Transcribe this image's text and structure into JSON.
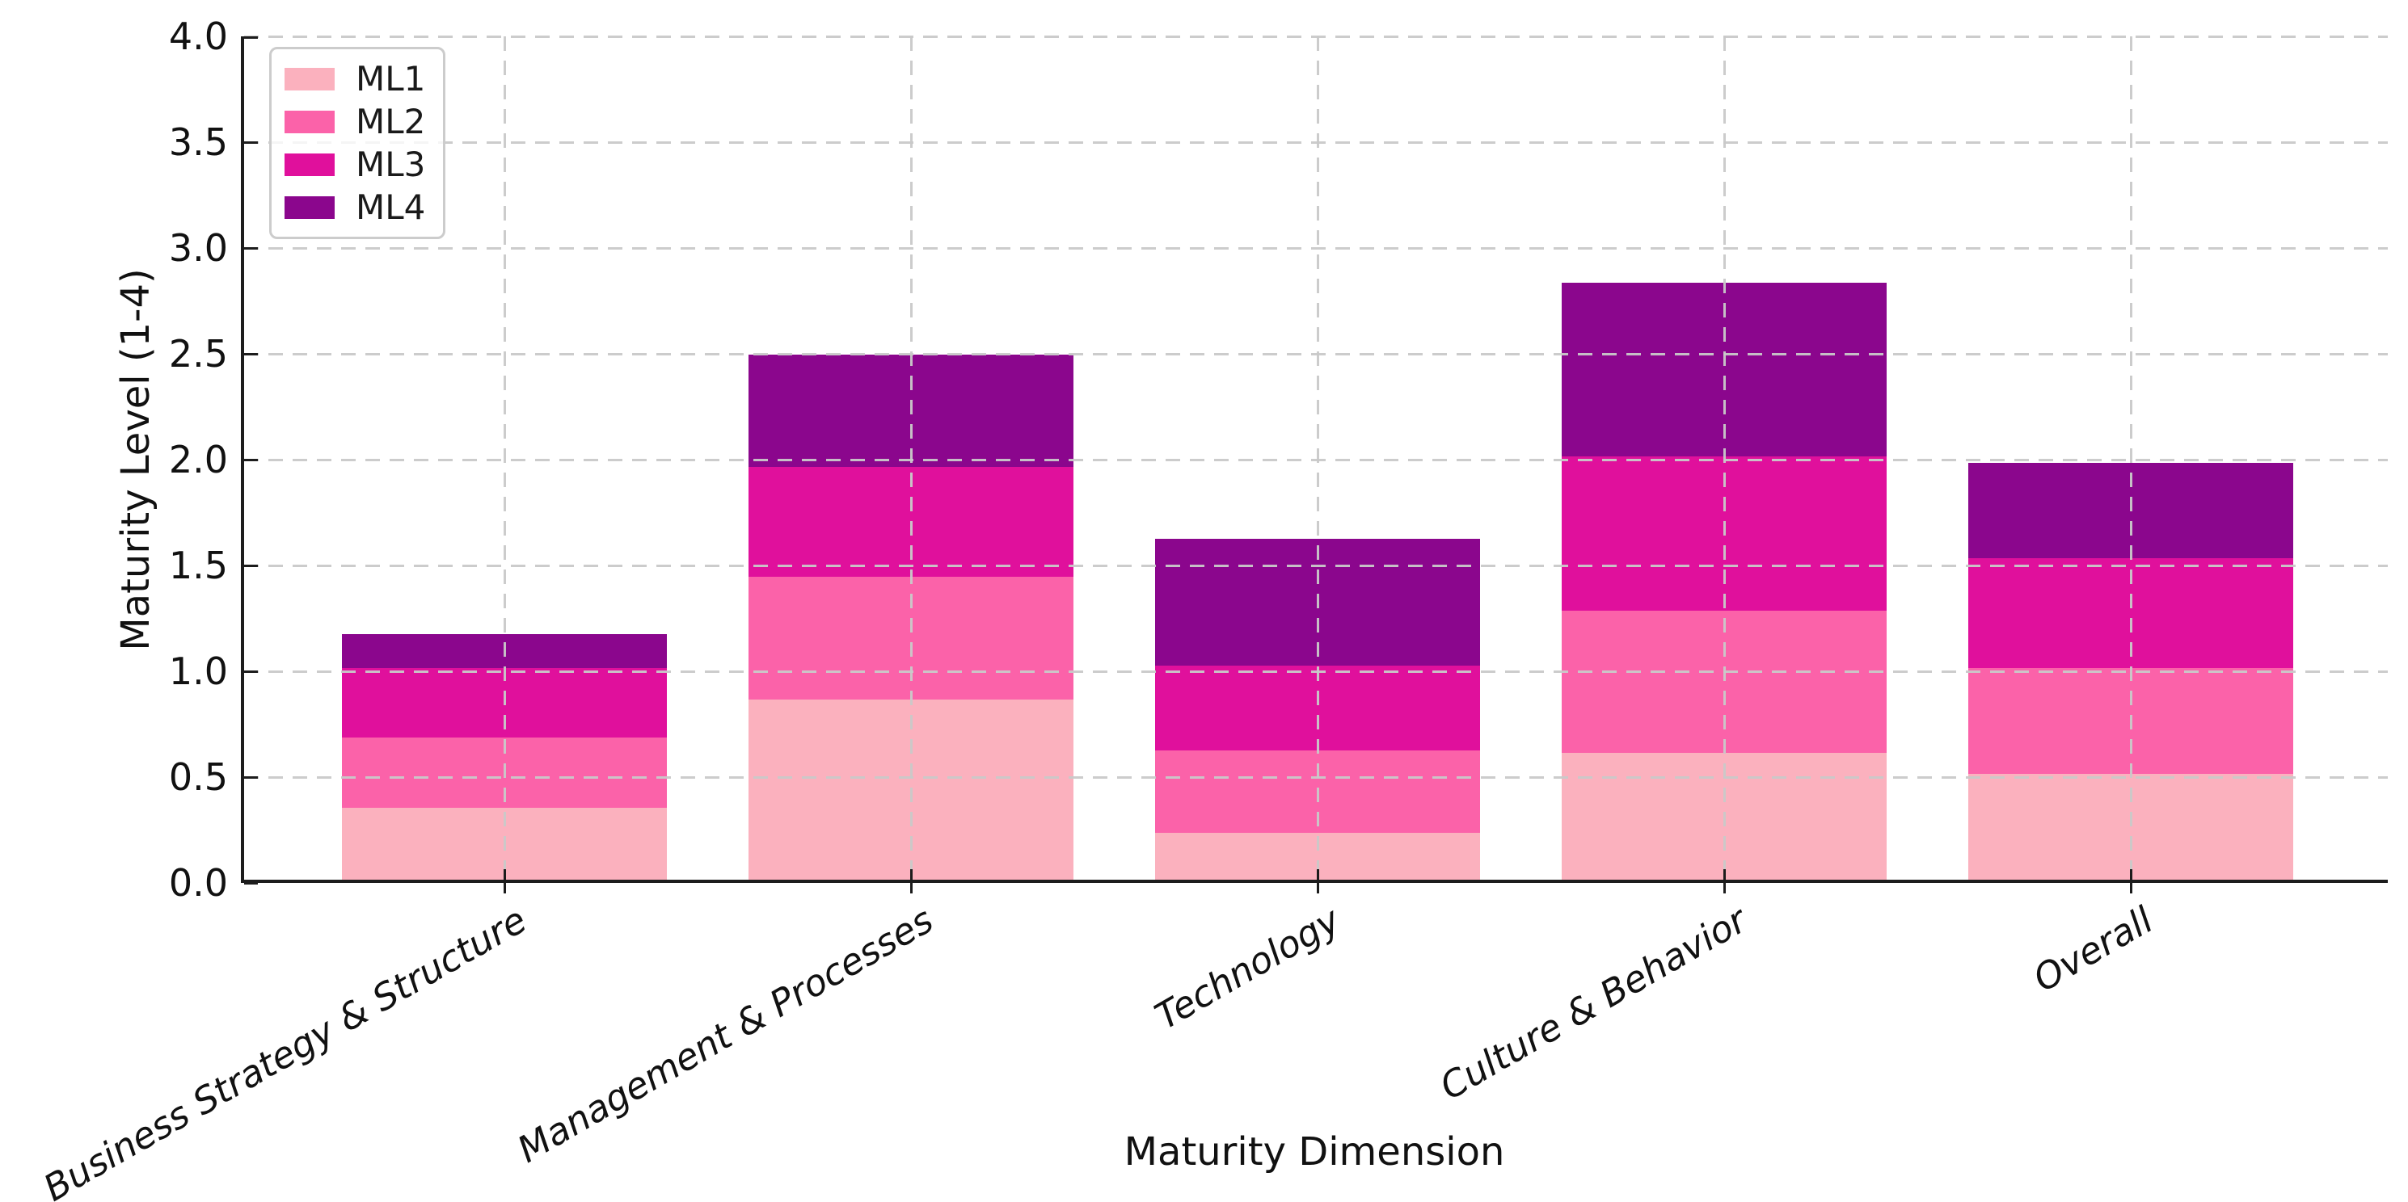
{
  "chart_data": {
    "type": "bar",
    "stacked": true,
    "title": "",
    "xlabel": "Maturity Dimension",
    "ylabel": "Maturity Level (1-4)",
    "categories": [
      "Business Strategy & Structure",
      "Management & Processes",
      "Technology",
      "Culture & Behavior",
      "Overall"
    ],
    "series": [
      {
        "name": "ML1",
        "color": "#FBB1BE",
        "values": [
          0.34,
          0.85,
          0.22,
          0.6,
          0.5
        ]
      },
      {
        "name": "ML2",
        "color": "#FB62A9",
        "values": [
          0.33,
          0.58,
          0.39,
          0.67,
          0.5
        ]
      },
      {
        "name": "ML3",
        "color": "#E0109C",
        "values": [
          0.33,
          0.52,
          0.4,
          0.73,
          0.52
        ]
      },
      {
        "name": "ML4",
        "color": "#8B068D",
        "values": [
          0.16,
          0.53,
          0.6,
          0.82,
          0.45
        ]
      }
    ],
    "stack_totals": [
      1.16,
      2.48,
      1.61,
      2.82,
      1.97
    ],
    "ylim": [
      0,
      4
    ],
    "y_ticks": {
      "values": [
        0,
        0.5,
        1,
        1.5,
        2,
        2.5,
        3,
        3.5,
        4
      ],
      "labels": [
        "0.0",
        "0.5",
        "1.0",
        "1.5",
        "2.0",
        "2.5",
        "3.0",
        "3.5",
        "4.0"
      ]
    },
    "grid": "dashed, light gray, horizontal at each 0.5 and vertical at each category, drawn over bars",
    "legend_position": "upper left",
    "x_tick_label_style": "italic, rotated 30deg, right-anchored",
    "colors": {
      "spine": "#1c1c1c",
      "grid": "#c9c9c9",
      "text": "#111111",
      "background": "#ffffff"
    }
  }
}
